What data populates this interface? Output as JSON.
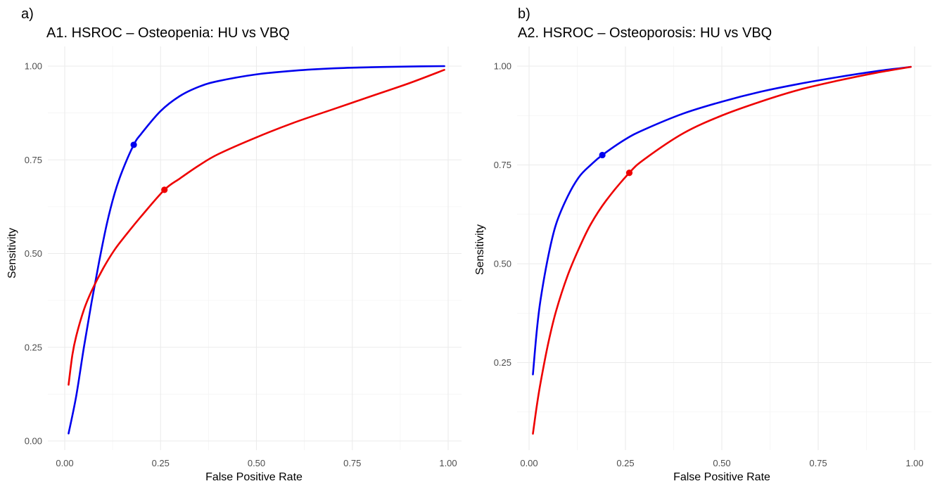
{
  "panels": [
    {
      "letter": "a)",
      "title": "A1. HSROC – Osteopenia: HU vs VBQ"
    },
    {
      "letter": "b)",
      "title": "A2. HSROC – Osteoporosis: HU vs VBQ"
    }
  ],
  "chart_data": [
    {
      "type": "line",
      "title": "A1. HSROC – Osteopenia: HU vs VBQ",
      "xlabel": "False Positive Rate",
      "ylabel": "Sensitivity",
      "xlim": [
        0,
        1
      ],
      "ylim": [
        0,
        1
      ],
      "x_ticks": [
        "0.00",
        "0.25",
        "0.50",
        "0.75",
        "1.00"
      ],
      "y_ticks": [
        "0.00",
        "0.25",
        "0.50",
        "0.75",
        "1.00"
      ],
      "grid": true,
      "legend": "none",
      "series": [
        {
          "color": "#0000ee",
          "x": [
            0.01,
            0.03,
            0.05,
            0.07,
            0.09,
            0.11,
            0.13,
            0.15,
            0.18,
            0.2,
            0.25,
            0.3,
            0.35,
            0.4,
            0.5,
            0.6,
            0.7,
            0.8,
            0.9,
            0.99
          ],
          "y": [
            0.02,
            0.12,
            0.25,
            0.37,
            0.48,
            0.58,
            0.66,
            0.72,
            0.79,
            0.82,
            0.88,
            0.92,
            0.945,
            0.96,
            0.978,
            0.988,
            0.994,
            0.997,
            0.999,
            1.0
          ],
          "point": {
            "x": 0.18,
            "y": 0.79
          }
        },
        {
          "color": "#ee0000",
          "x": [
            0.01,
            0.02,
            0.03,
            0.05,
            0.07,
            0.1,
            0.13,
            0.16,
            0.2,
            0.26,
            0.3,
            0.35,
            0.4,
            0.5,
            0.6,
            0.7,
            0.8,
            0.9,
            0.99
          ],
          "y": [
            0.15,
            0.23,
            0.28,
            0.35,
            0.4,
            0.46,
            0.51,
            0.55,
            0.6,
            0.67,
            0.7,
            0.735,
            0.765,
            0.81,
            0.85,
            0.885,
            0.92,
            0.955,
            0.99
          ],
          "point": {
            "x": 0.26,
            "y": 0.67
          }
        }
      ]
    },
    {
      "type": "line",
      "title": "A2. HSROC – Osteoporosis: HU vs VBQ",
      "xlabel": "False Positive Rate",
      "ylabel": "Sensitivity",
      "xlim": [
        0,
        1
      ],
      "ylim": [
        0.07,
        1
      ],
      "x_ticks": [
        "0.00",
        "0.25",
        "0.50",
        "0.75",
        "1.00"
      ],
      "y_ticks": [
        "0.25",
        "0.50",
        "0.75",
        "1.00"
      ],
      "grid": true,
      "legend": "none",
      "series": [
        {
          "color": "#0000ee",
          "x": [
            0.01,
            0.02,
            0.03,
            0.05,
            0.07,
            0.1,
            0.13,
            0.16,
            0.19,
            0.25,
            0.3,
            0.4,
            0.5,
            0.6,
            0.7,
            0.8,
            0.9,
            0.99
          ],
          "y": [
            0.22,
            0.33,
            0.41,
            0.52,
            0.6,
            0.67,
            0.72,
            0.75,
            0.775,
            0.815,
            0.84,
            0.88,
            0.91,
            0.935,
            0.955,
            0.972,
            0.987,
            0.998
          ],
          "point": {
            "x": 0.19,
            "y": 0.775
          }
        },
        {
          "color": "#ee0000",
          "x": [
            0.01,
            0.02,
            0.03,
            0.05,
            0.07,
            0.1,
            0.13,
            0.16,
            0.2,
            0.26,
            0.3,
            0.4,
            0.5,
            0.6,
            0.7,
            0.8,
            0.9,
            0.99
          ],
          "y": [
            0.07,
            0.14,
            0.2,
            0.3,
            0.38,
            0.47,
            0.54,
            0.6,
            0.66,
            0.73,
            0.765,
            0.83,
            0.875,
            0.91,
            0.94,
            0.963,
            0.983,
            0.998
          ],
          "point": {
            "x": 0.26,
            "y": 0.73
          }
        }
      ]
    }
  ]
}
